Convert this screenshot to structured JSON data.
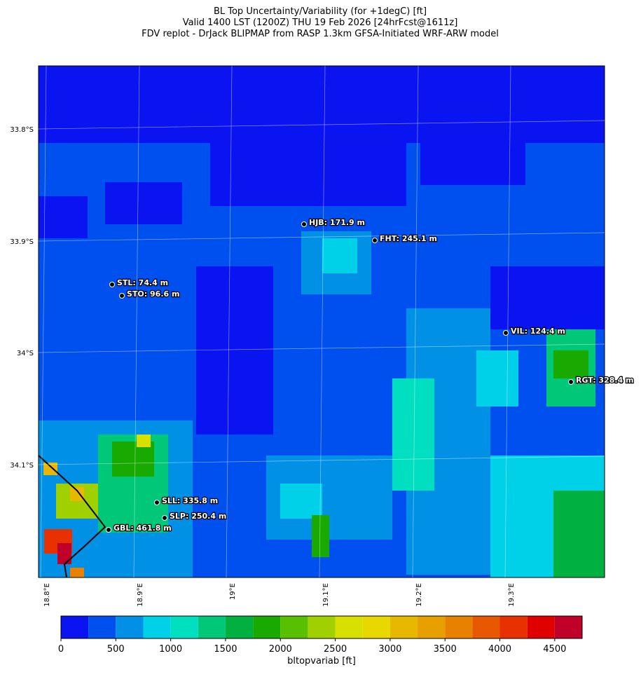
{
  "title": [
    "BL Top Uncertainty/Variability (for +1degC) [ft]",
    "Valid 1400 LST (1200Z) THU 19 Feb 2026 [24hrFcst@1611z]",
    "FDV replot - DrJack BLIPMAP from RASP 1.3km GFSA-Initiated WRF-ARW model"
  ],
  "map": {
    "lat_ticks": [
      "33.8°S",
      "33.9°S",
      "34°S",
      "34.1°S"
    ],
    "lon_ticks": [
      "18.8°E",
      "18.9°E",
      "19°E",
      "19.1°E",
      "19.2°E",
      "19.3°E"
    ],
    "stations": [
      "HJB: 171.9 m",
      "FHT: 245.1 m",
      "STL: 74.4 m",
      "STO: 96.6 m",
      "VIL: 124.4 m",
      "RGT: 328.4 m",
      "SLL: 335.8 m",
      "SLP: 250.4 m",
      "GBL: 461.8 m"
    ]
  },
  "colorbar": {
    "label": "bltopvariab [ft]",
    "lim": [
      0,
      4750
    ],
    "ticks": [
      0,
      500,
      1000,
      1500,
      2000,
      2500,
      3000,
      3500,
      4000,
      4500
    ],
    "bounds": [
      0,
      250,
      500,
      750,
      1000,
      1250,
      1500,
      1750,
      2000,
      2250,
      2500,
      2750,
      3000,
      3250,
      3500,
      3750,
      4000,
      4250,
      4500,
      4750
    ],
    "colors": [
      "#0a14f0",
      "#0050f0",
      "#0090e6",
      "#00d0e8",
      "#00e0c0",
      "#00c878",
      "#00b040",
      "#18aa00",
      "#58c000",
      "#a0d000",
      "#d8e000",
      "#e8d800",
      "#e8b800",
      "#e8a000",
      "#e88000",
      "#e85800",
      "#e83000",
      "#e00000",
      "#c00028"
    ]
  }
}
